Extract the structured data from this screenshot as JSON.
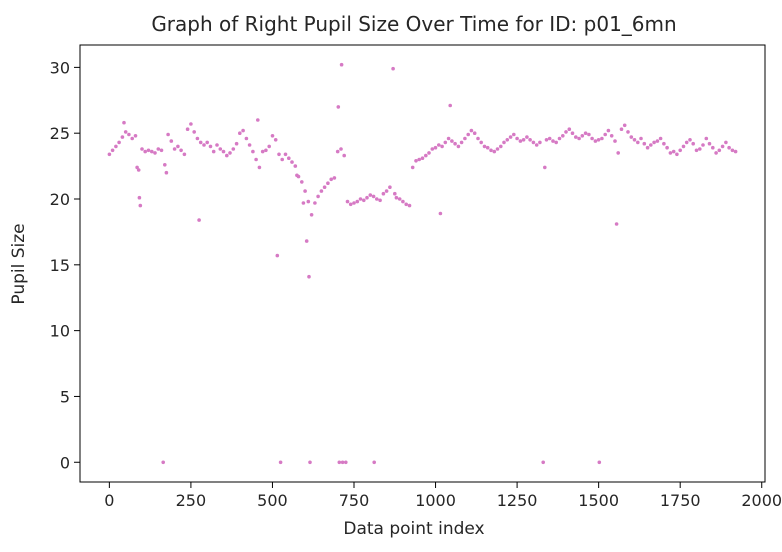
{
  "chart_data": {
    "type": "scatter",
    "title": "Graph of Right Pupil Size Over Time for ID: p01_6mn",
    "xlabel": "Data point index",
    "ylabel": "Pupil Size",
    "xlim": [
      -90,
      2010
    ],
    "ylim": [
      -1.5,
      31.7
    ],
    "xticks": [
      0,
      250,
      500,
      750,
      1000,
      1250,
      1500,
      1750,
      2000
    ],
    "yticks": [
      0,
      5,
      10,
      15,
      20,
      25,
      30
    ],
    "grid": false,
    "marker_color": "#d67ac4",
    "series": [
      {
        "name": "",
        "points": [
          [
            0,
            23.4
          ],
          [
            10,
            23.7
          ],
          [
            20,
            24.0
          ],
          [
            30,
            24.3
          ],
          [
            40,
            24.7
          ],
          [
            45,
            25.8
          ],
          [
            50,
            25.1
          ],
          [
            60,
            24.9
          ],
          [
            70,
            24.6
          ],
          [
            80,
            24.8
          ],
          [
            85,
            22.4
          ],
          [
            90,
            22.2
          ],
          [
            92,
            20.1
          ],
          [
            95,
            19.5
          ],
          [
            100,
            23.8
          ],
          [
            110,
            23.6
          ],
          [
            120,
            23.7
          ],
          [
            130,
            23.6
          ],
          [
            140,
            23.5
          ],
          [
            150,
            23.8
          ],
          [
            160,
            23.7
          ],
          [
            165,
            0.0
          ],
          [
            170,
            22.6
          ],
          [
            175,
            22.0
          ],
          [
            180,
            24.9
          ],
          [
            190,
            24.4
          ],
          [
            200,
            23.8
          ],
          [
            210,
            24.0
          ],
          [
            220,
            23.7
          ],
          [
            230,
            23.4
          ],
          [
            240,
            25.3
          ],
          [
            250,
            25.7
          ],
          [
            260,
            25.1
          ],
          [
            270,
            24.6
          ],
          [
            275,
            18.4
          ],
          [
            280,
            24.3
          ],
          [
            290,
            24.1
          ],
          [
            300,
            24.3
          ],
          [
            310,
            24.0
          ],
          [
            320,
            23.6
          ],
          [
            330,
            24.1
          ],
          [
            340,
            23.8
          ],
          [
            350,
            23.6
          ],
          [
            360,
            23.3
          ],
          [
            370,
            23.5
          ],
          [
            380,
            23.8
          ],
          [
            390,
            24.2
          ],
          [
            400,
            25.0
          ],
          [
            410,
            25.2
          ],
          [
            420,
            24.6
          ],
          [
            430,
            24.1
          ],
          [
            440,
            23.6
          ],
          [
            450,
            23.0
          ],
          [
            455,
            26.0
          ],
          [
            460,
            22.4
          ],
          [
            470,
            23.6
          ],
          [
            480,
            23.7
          ],
          [
            490,
            24.0
          ],
          [
            500,
            24.8
          ],
          [
            510,
            24.5
          ],
          [
            515,
            15.7
          ],
          [
            520,
            23.4
          ],
          [
            525,
            0.0
          ],
          [
            530,
            23.0
          ],
          [
            540,
            23.4
          ],
          [
            550,
            23.1
          ],
          [
            560,
            22.8
          ],
          [
            570,
            22.5
          ],
          [
            575,
            21.8
          ],
          [
            580,
            21.7
          ],
          [
            590,
            21.3
          ],
          [
            595,
            19.7
          ],
          [
            600,
            20.6
          ],
          [
            605,
            16.8
          ],
          [
            610,
            19.8
          ],
          [
            612,
            14.1
          ],
          [
            615,
            0.0
          ],
          [
            620,
            18.8
          ],
          [
            630,
            19.7
          ],
          [
            640,
            20.2
          ],
          [
            650,
            20.6
          ],
          [
            660,
            20.9
          ],
          [
            670,
            21.2
          ],
          [
            680,
            21.5
          ],
          [
            690,
            21.6
          ],
          [
            700,
            23.6
          ],
          [
            702,
            27.0
          ],
          [
            705,
            0.0
          ],
          [
            710,
            23.8
          ],
          [
            712,
            30.2
          ],
          [
            715,
            0.0
          ],
          [
            720,
            23.3
          ],
          [
            725,
            0.0
          ],
          [
            730,
            19.8
          ],
          [
            740,
            19.6
          ],
          [
            750,
            19.7
          ],
          [
            760,
            19.8
          ],
          [
            770,
            20.0
          ],
          [
            780,
            19.9
          ],
          [
            790,
            20.1
          ],
          [
            800,
            20.3
          ],
          [
            810,
            20.2
          ],
          [
            812,
            0.0
          ],
          [
            820,
            20.0
          ],
          [
            830,
            19.9
          ],
          [
            840,
            20.4
          ],
          [
            850,
            20.6
          ],
          [
            860,
            20.9
          ],
          [
            870,
            29.9
          ],
          [
            875,
            20.4
          ],
          [
            880,
            20.1
          ],
          [
            890,
            20.0
          ],
          [
            900,
            19.8
          ],
          [
            910,
            19.6
          ],
          [
            920,
            19.5
          ],
          [
            930,
            22.4
          ],
          [
            940,
            22.9
          ],
          [
            950,
            23.0
          ],
          [
            960,
            23.1
          ],
          [
            970,
            23.3
          ],
          [
            980,
            23.5
          ],
          [
            990,
            23.8
          ],
          [
            1000,
            23.9
          ],
          [
            1010,
            24.1
          ],
          [
            1015,
            18.9
          ],
          [
            1020,
            24.0
          ],
          [
            1030,
            24.3
          ],
          [
            1040,
            24.6
          ],
          [
            1045,
            27.1
          ],
          [
            1050,
            24.4
          ],
          [
            1060,
            24.2
          ],
          [
            1070,
            24.0
          ],
          [
            1080,
            24.3
          ],
          [
            1090,
            24.6
          ],
          [
            1100,
            24.9
          ],
          [
            1110,
            25.2
          ],
          [
            1120,
            25.0
          ],
          [
            1130,
            24.6
          ],
          [
            1140,
            24.3
          ],
          [
            1150,
            24.0
          ],
          [
            1160,
            23.9
          ],
          [
            1170,
            23.7
          ],
          [
            1180,
            23.6
          ],
          [
            1190,
            23.8
          ],
          [
            1200,
            24.0
          ],
          [
            1210,
            24.3
          ],
          [
            1220,
            24.5
          ],
          [
            1230,
            24.7
          ],
          [
            1240,
            24.9
          ],
          [
            1250,
            24.6
          ],
          [
            1260,
            24.4
          ],
          [
            1270,
            24.5
          ],
          [
            1280,
            24.7
          ],
          [
            1290,
            24.5
          ],
          [
            1300,
            24.3
          ],
          [
            1310,
            24.1
          ],
          [
            1320,
            24.3
          ],
          [
            1330,
            0.0
          ],
          [
            1335,
            22.4
          ],
          [
            1340,
            24.5
          ],
          [
            1350,
            24.6
          ],
          [
            1360,
            24.4
          ],
          [
            1370,
            24.3
          ],
          [
            1380,
            24.6
          ],
          [
            1390,
            24.8
          ],
          [
            1400,
            25.1
          ],
          [
            1410,
            25.3
          ],
          [
            1420,
            25.0
          ],
          [
            1430,
            24.7
          ],
          [
            1440,
            24.6
          ],
          [
            1450,
            24.8
          ],
          [
            1460,
            25.0
          ],
          [
            1470,
            24.9
          ],
          [
            1480,
            24.6
          ],
          [
            1490,
            24.4
          ],
          [
            1500,
            24.5
          ],
          [
            1502,
            0.0
          ],
          [
            1510,
            24.6
          ],
          [
            1520,
            24.9
          ],
          [
            1530,
            25.2
          ],
          [
            1540,
            24.8
          ],
          [
            1550,
            24.4
          ],
          [
            1555,
            18.1
          ],
          [
            1560,
            23.5
          ],
          [
            1570,
            25.3
          ],
          [
            1580,
            25.6
          ],
          [
            1590,
            25.1
          ],
          [
            1600,
            24.7
          ],
          [
            1610,
            24.5
          ],
          [
            1620,
            24.3
          ],
          [
            1630,
            24.6
          ],
          [
            1640,
            24.2
          ],
          [
            1650,
            23.9
          ],
          [
            1660,
            24.1
          ],
          [
            1670,
            24.3
          ],
          [
            1680,
            24.4
          ],
          [
            1690,
            24.6
          ],
          [
            1700,
            24.2
          ],
          [
            1710,
            23.9
          ],
          [
            1720,
            23.5
          ],
          [
            1730,
            23.6
          ],
          [
            1740,
            23.4
          ],
          [
            1750,
            23.7
          ],
          [
            1760,
            24.0
          ],
          [
            1770,
            24.3
          ],
          [
            1780,
            24.5
          ],
          [
            1790,
            24.2
          ],
          [
            1800,
            23.7
          ],
          [
            1810,
            23.8
          ],
          [
            1820,
            24.1
          ],
          [
            1830,
            24.6
          ],
          [
            1840,
            24.2
          ],
          [
            1850,
            23.9
          ],
          [
            1860,
            23.5
          ],
          [
            1870,
            23.7
          ],
          [
            1880,
            24.0
          ],
          [
            1890,
            24.3
          ],
          [
            1900,
            23.9
          ],
          [
            1910,
            23.7
          ],
          [
            1920,
            23.6
          ]
        ]
      }
    ]
  }
}
